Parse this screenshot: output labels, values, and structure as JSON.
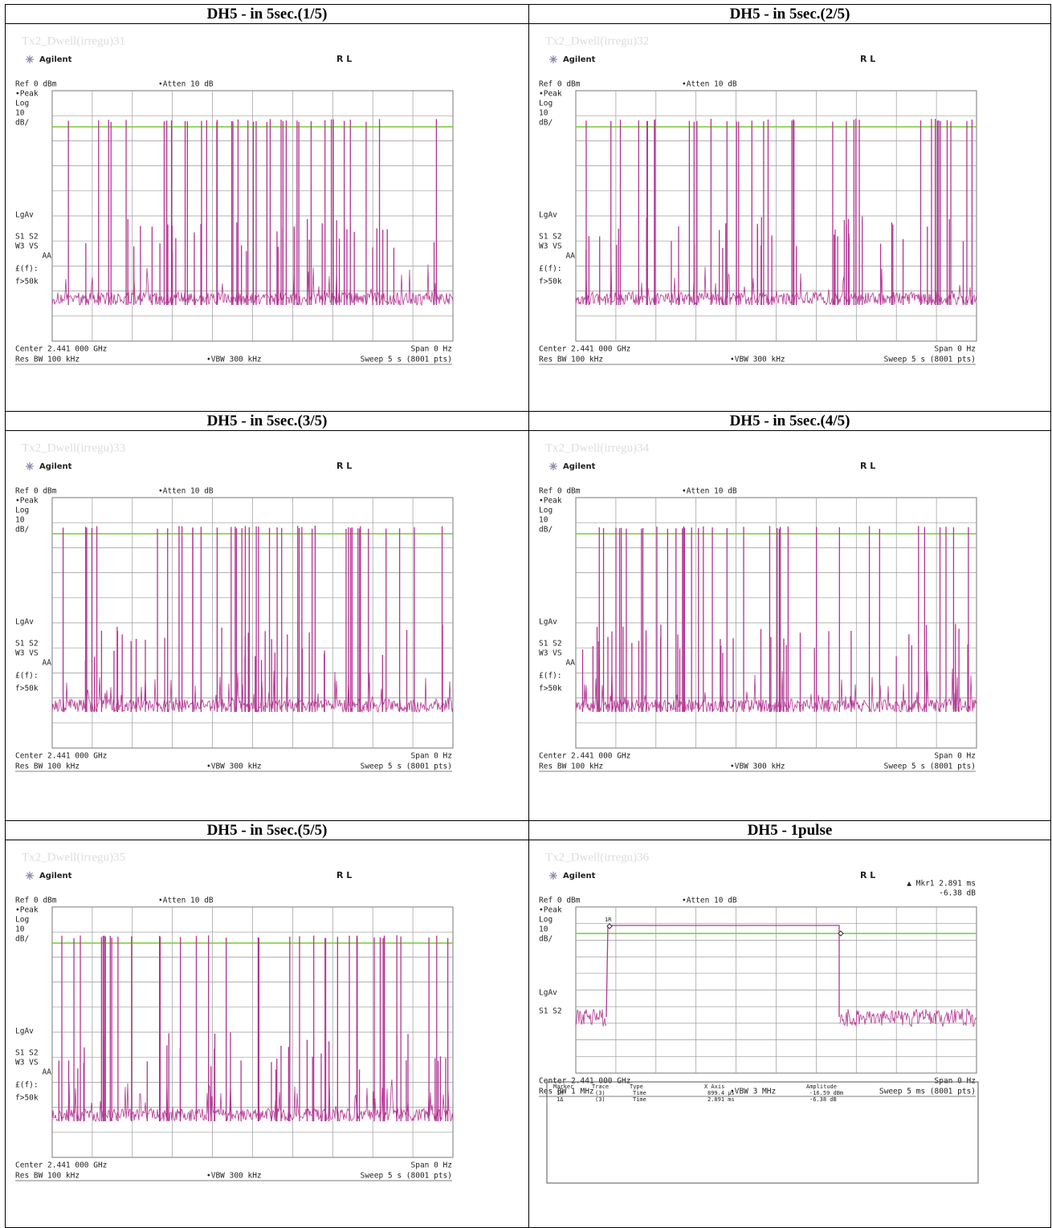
{
  "cells": [
    {
      "title": "DH5 - in 5sec.(1/5)",
      "caption": "Tx2_Dwell(irregu)31",
      "brand": "Agilent",
      "mode": "R L",
      "atten": "•Atten 10 dB",
      "left_labels": [
        "Ref 0 dBm",
        "•Peak",
        "Log",
        "10",
        "dB/",
        "LgAv",
        "S1  S2",
        "W3  VS",
        "AA",
        "£(f):",
        "f>50k"
      ],
      "center": "Center 2.441 000 GHz",
      "span": "Span 0 Hz",
      "rbw": "Res BW 100 kHz",
      "vbw": "•VBW 300 kHz",
      "sweep": "Sweep 5 s (8001 pts)"
    },
    {
      "title": "DH5 - in 5sec.(2/5)",
      "caption": "Tx2_Dwell(irregu)32",
      "brand": "Agilent",
      "mode": "R L",
      "atten": "•Atten 10 dB",
      "left_labels": [
        "Ref 0 dBm",
        "•Peak",
        "Log",
        "10",
        "dB/",
        "LgAv",
        "S1  S2",
        "W3  VS",
        "AA",
        "£(f):",
        "f>50k"
      ],
      "center": "Center 2.441 000 GHz",
      "span": "Span 0 Hz",
      "rbw": "Res BW 100 kHz",
      "vbw": "•VBW 300 kHz",
      "sweep": "Sweep 5 s (8001 pts)"
    },
    {
      "title": "DH5 - in 5sec.(3/5)",
      "caption": "Tx2_Dwell(irregu)33",
      "brand": "Agilent",
      "mode": "R L",
      "atten": "•Atten 10 dB",
      "left_labels": [
        "Ref 0 dBm",
        "•Peak",
        "Log",
        "10",
        "dB/",
        "LgAv",
        "S1  S2",
        "W3  VS",
        "AA",
        "£(f):",
        "f>50k"
      ],
      "center": "Center 2.441 000 GHz",
      "span": "Span 0 Hz",
      "rbw": "Res BW 100 kHz",
      "vbw": "•VBW 300 kHz",
      "sweep": "Sweep 5 s (8001 pts)"
    },
    {
      "title": "DH5 - in 5sec.(4/5)",
      "caption": "Tx2_Dwell(irregu)34",
      "brand": "Agilent",
      "mode": "R L",
      "atten": "•Atten 10 dB",
      "left_labels": [
        "Ref 0 dBm",
        "•Peak",
        "Log",
        "10",
        "dB/",
        "LgAv",
        "S1  S2",
        "W3  VS",
        "AA",
        "£(f):",
        "f>50k"
      ],
      "center": "Center 2.441 000 GHz",
      "span": "Span 0 Hz",
      "rbw": "Res BW 100 kHz",
      "vbw": "•VBW 300 kHz",
      "sweep": "Sweep 5 s (8001 pts)"
    },
    {
      "title": "DH5 - in 5sec.(5/5)",
      "caption": "Tx2_Dwell(irregu)35",
      "brand": "Agilent",
      "mode": "R L",
      "atten": "•Atten 10 dB",
      "left_labels": [
        "Ref 0 dBm",
        "•Peak",
        "Log",
        "10",
        "dB/",
        "LgAv",
        "S1  S2",
        "W3  VS",
        "AA",
        "£(f):",
        "f>50k"
      ],
      "center": "Center 2.441 000 GHz",
      "span": "Span 0 Hz",
      "rbw": "Res BW 100 kHz",
      "vbw": "•VBW 300 kHz",
      "sweep": "Sweep 5 s (8001 pts)"
    },
    {
      "title": "DH5 - 1pulse",
      "caption": "Tx2_Dwell(irregu)36",
      "brand": "Agilent",
      "mode": "R L",
      "atten": "•Atten 10 dB",
      "left_labels": [
        "Ref 0 dBm",
        "•Peak",
        "Log",
        "10",
        "dB/",
        "LgAv",
        "S1  S2"
      ],
      "center": "Center 2.441 000 GHz",
      "span": "Span 0 Hz",
      "rbw": "Res BW 1 MHz",
      "vbw": "•VBW 3 MHz",
      "sweep": "Sweep 5 ms (8001 pts)",
      "marker_readout": [
        "▲ Mkr1  2.891 ms",
        "-6.38 dB"
      ],
      "marker_label": "1R",
      "marker_table": {
        "header": [
          "Marker",
          "Trace",
          "Type",
          "X Axis",
          "Amplitude"
        ],
        "rows": [
          [
            "1R",
            "(3)",
            "Time",
            "899.4 µs",
            "-16.59 dBm"
          ],
          [
            "1Δ",
            "(3)",
            "Time",
            "2.891 ms",
            "-6.38 dB"
          ]
        ]
      }
    }
  ]
}
